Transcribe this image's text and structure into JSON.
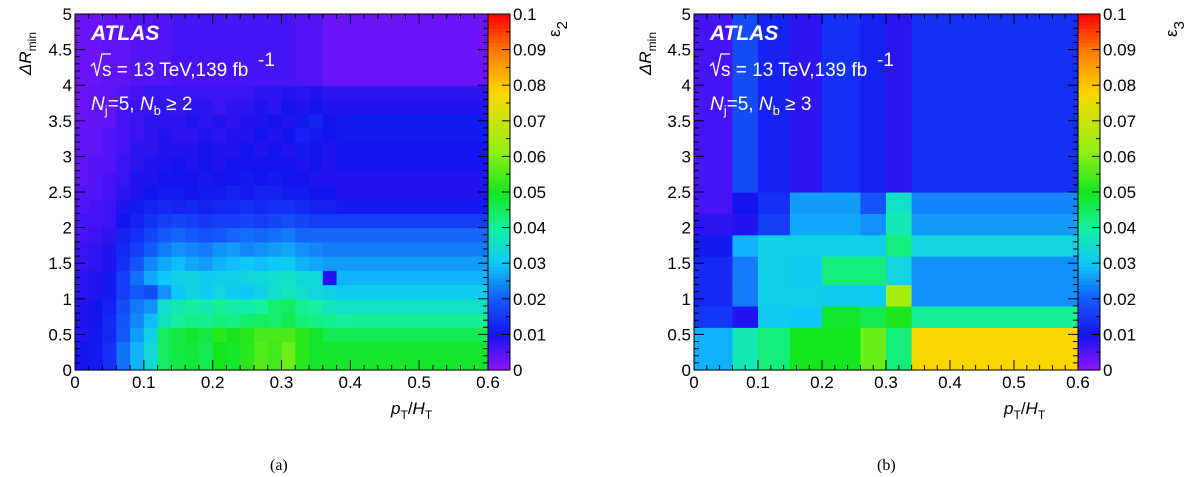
{
  "chart_data": [
    {
      "type": "heatmap",
      "panel_label": "(a)",
      "atlas_label": "ATLAS",
      "energy_text": "s = 13 TeV,139 fb",
      "energy_sup": "-1",
      "selection": {
        "nj": "N",
        "nj_sub": "j",
        "nj_val": "=5, ",
        "nb": "N",
        "nb_sub": "b",
        "nb_val": " ≥ 2"
      },
      "xlabel": {
        "p": "p",
        "p_sub": "T",
        "slash": "/",
        "h": "H",
        "h_sub": "T"
      },
      "ylabel": {
        "main": "ΔR",
        "sub": "min"
      },
      "zlabel": {
        "main": "ε",
        "sub": "2"
      },
      "xlim": [
        0,
        0.6
      ],
      "ylim": [
        0,
        5
      ],
      "zlim": [
        0,
        0.1
      ],
      "x_ticks": [
        "0",
        "0.1",
        "0.2",
        "0.3",
        "0.4",
        "0.5",
        "0.6"
      ],
      "y_ticks": [
        "0",
        "0.5",
        "1",
        "1.5",
        "2",
        "2.5",
        "3",
        "3.5",
        "4",
        "4.5",
        "5"
      ],
      "z_ticks": [
        "0",
        "0.01",
        "0.02",
        "0.03",
        "0.04",
        "0.05",
        "0.06",
        "0.07",
        "0.08",
        "0.09",
        "0.1"
      ],
      "x_edges": [
        0,
        0.02,
        0.04,
        0.06,
        0.08,
        0.1,
        0.12,
        0.14,
        0.16,
        0.18,
        0.2,
        0.22,
        0.24,
        0.26,
        0.28,
        0.3,
        0.32,
        0.34,
        0.36,
        0.38,
        0.4,
        0.6
      ],
      "y_edges": [
        0,
        0.2,
        0.4,
        0.6,
        0.8,
        1.0,
        1.2,
        1.4,
        1.6,
        1.8,
        2.0,
        2.2,
        2.4,
        2.6,
        2.8,
        3.0,
        3.2,
        3.4,
        3.6,
        3.8,
        4.0,
        5.0
      ],
      "z": [
        [
          0.01,
          0.011,
          0.014,
          0.022,
          0.028,
          0.034,
          0.045,
          0.047,
          0.048,
          0.046,
          0.05,
          0.049,
          0.052,
          0.056,
          0.054,
          0.058,
          0.052,
          0.049,
          0.049,
          0.049,
          0.049
        ],
        [
          0.01,
          0.011,
          0.014,
          0.022,
          0.028,
          0.034,
          0.045,
          0.047,
          0.048,
          0.046,
          0.05,
          0.049,
          0.052,
          0.056,
          0.054,
          0.058,
          0.052,
          0.049,
          0.049,
          0.049,
          0.049
        ],
        [
          0.009,
          0.011,
          0.013,
          0.02,
          0.026,
          0.032,
          0.045,
          0.047,
          0.049,
          0.047,
          0.052,
          0.05,
          0.052,
          0.055,
          0.055,
          0.055,
          0.052,
          0.049,
          0.046,
          0.046,
          0.046
        ],
        [
          0.009,
          0.01,
          0.013,
          0.019,
          0.024,
          0.029,
          0.036,
          0.04,
          0.042,
          0.041,
          0.043,
          0.042,
          0.044,
          0.045,
          0.044,
          0.046,
          0.043,
          0.042,
          0.041,
          0.04,
          0.041
        ],
        [
          0.009,
          0.01,
          0.012,
          0.018,
          0.023,
          0.025,
          0.035,
          0.038,
          0.04,
          0.038,
          0.041,
          0.039,
          0.039,
          0.04,
          0.044,
          0.045,
          0.041,
          0.04,
          0.037,
          0.036,
          0.036
        ],
        [
          0.008,
          0.009,
          0.011,
          0.016,
          0.02,
          0.018,
          0.025,
          0.03,
          0.033,
          0.031,
          0.033,
          0.031,
          0.03,
          0.032,
          0.035,
          0.037,
          0.035,
          0.033,
          0.032,
          0.031,
          0.031
        ],
        [
          0.008,
          0.009,
          0.011,
          0.016,
          0.022,
          0.027,
          0.03,
          0.032,
          0.033,
          0.031,
          0.032,
          0.032,
          0.033,
          0.034,
          0.035,
          0.036,
          0.034,
          0.034,
          0.009,
          0.028,
          0.028
        ],
        [
          0.007,
          0.008,
          0.009,
          0.014,
          0.019,
          0.024,
          0.027,
          0.029,
          0.027,
          0.026,
          0.028,
          0.029,
          0.03,
          0.029,
          0.03,
          0.031,
          0.028,
          0.027,
          0.026,
          0.026,
          0.026
        ],
        [
          0.007,
          0.008,
          0.009,
          0.013,
          0.016,
          0.02,
          0.023,
          0.025,
          0.024,
          0.023,
          0.025,
          0.026,
          0.024,
          0.025,
          0.026,
          0.027,
          0.025,
          0.024,
          0.023,
          0.023,
          0.023
        ],
        [
          0.006,
          0.007,
          0.008,
          0.012,
          0.014,
          0.017,
          0.02,
          0.021,
          0.02,
          0.019,
          0.02,
          0.021,
          0.022,
          0.021,
          0.022,
          0.023,
          0.021,
          0.021,
          0.021,
          0.021,
          0.021
        ],
        [
          0.006,
          0.006,
          0.007,
          0.01,
          0.012,
          0.014,
          0.016,
          0.017,
          0.016,
          0.015,
          0.016,
          0.016,
          0.017,
          0.016,
          0.017,
          0.018,
          0.017,
          0.016,
          0.016,
          0.016,
          0.016
        ],
        [
          0.005,
          0.006,
          0.007,
          0.009,
          0.011,
          0.012,
          0.013,
          0.012,
          0.013,
          0.012,
          0.013,
          0.013,
          0.014,
          0.013,
          0.014,
          0.014,
          0.013,
          0.012,
          0.012,
          0.011,
          0.011
        ],
        [
          0.005,
          0.005,
          0.006,
          0.008,
          0.009,
          0.01,
          0.011,
          0.011,
          0.01,
          0.011,
          0.011,
          0.012,
          0.011,
          0.012,
          0.012,
          0.011,
          0.011,
          0.01,
          0.01,
          0.009,
          0.009
        ],
        [
          0.004,
          0.005,
          0.006,
          0.007,
          0.009,
          0.009,
          0.01,
          0.01,
          0.01,
          0.009,
          0.01,
          0.01,
          0.011,
          0.01,
          0.011,
          0.01,
          0.01,
          0.009,
          0.009,
          0.009,
          0.009
        ],
        [
          0.004,
          0.005,
          0.005,
          0.007,
          0.008,
          0.009,
          0.009,
          0.01,
          0.009,
          0.01,
          0.009,
          0.01,
          0.01,
          0.01,
          0.01,
          0.01,
          0.009,
          0.01,
          0.009,
          0.01,
          0.01
        ],
        [
          0.004,
          0.004,
          0.005,
          0.006,
          0.008,
          0.008,
          0.009,
          0.009,
          0.009,
          0.01,
          0.009,
          0.009,
          0.01,
          0.009,
          0.01,
          0.009,
          0.011,
          0.01,
          0.009,
          0.01,
          0.01
        ],
        [
          0.004,
          0.004,
          0.005,
          0.006,
          0.007,
          0.008,
          0.009,
          0.008,
          0.008,
          0.009,
          0.008,
          0.009,
          0.009,
          0.01,
          0.009,
          0.01,
          0.012,
          0.011,
          0.01,
          0.011,
          0.011
        ],
        [
          0.003,
          0.004,
          0.004,
          0.006,
          0.007,
          0.008,
          0.008,
          0.008,
          0.009,
          0.008,
          0.009,
          0.008,
          0.009,
          0.009,
          0.01,
          0.009,
          0.011,
          0.012,
          0.01,
          0.011,
          0.011
        ],
        [
          0.003,
          0.004,
          0.004,
          0.006,
          0.007,
          0.007,
          0.008,
          0.007,
          0.008,
          0.008,
          0.007,
          0.008,
          0.008,
          0.009,
          0.008,
          0.01,
          0.009,
          0.01,
          0.009,
          0.009,
          0.009
        ],
        [
          0.003,
          0.004,
          0.004,
          0.005,
          0.006,
          0.007,
          0.007,
          0.007,
          0.007,
          0.007,
          0.007,
          0.007,
          0.007,
          0.008,
          0.008,
          0.009,
          0.008,
          0.009,
          0.008,
          0.008,
          0.008
        ],
        [
          0.003,
          0.003,
          0.004,
          0.004,
          0.005,
          0.005,
          0.005,
          0.006,
          0.006,
          0.006,
          0.006,
          0.006,
          0.006,
          0.006,
          0.006,
          0.006,
          0.005,
          0.005,
          0.003,
          0.003,
          0.003
        ]
      ]
    },
    {
      "type": "heatmap",
      "panel_label": "(b)",
      "atlas_label": "ATLAS",
      "energy_text": "s = 13 TeV,139 fb",
      "energy_sup": "-1",
      "selection": {
        "nj": "N",
        "nj_sub": "j",
        "nj_val": "=5, ",
        "nb": "N",
        "nb_sub": "b",
        "nb_val": " ≥ 3"
      },
      "xlabel": {
        "p": "p",
        "p_sub": "T",
        "slash": "/",
        "h": "H",
        "h_sub": "T"
      },
      "ylabel": {
        "main": "ΔR",
        "sub": "min"
      },
      "zlabel": {
        "main": "ε",
        "sub": "3"
      },
      "xlim": [
        0,
        0.6
      ],
      "ylim": [
        0,
        5
      ],
      "zlim": [
        0,
        0.1
      ],
      "x_ticks": [
        "0",
        "0.1",
        "0.2",
        "0.3",
        "0.4",
        "0.5",
        "0.6"
      ],
      "y_ticks": [
        "0",
        "0.5",
        "1",
        "1.5",
        "2",
        "2.5",
        "3",
        "3.5",
        "4",
        "4.5",
        "5"
      ],
      "z_ticks": [
        "0",
        "0.01",
        "0.02",
        "0.03",
        "0.04",
        "0.05",
        "0.06",
        "0.07",
        "0.08",
        "0.09",
        "0.1"
      ],
      "x_edges": [
        0,
        0.06,
        0.1,
        0.15,
        0.2,
        0.26,
        0.3,
        0.34,
        0.6
      ],
      "y_edges": [
        0,
        0.6,
        0.9,
        1.2,
        1.6,
        1.9,
        2.2,
        2.5,
        5.0
      ],
      "z": [
        [
          0.028,
          0.038,
          0.043,
          0.05,
          0.05,
          0.058,
          0.043,
          0.078
        ],
        [
          0.015,
          0.009,
          0.031,
          0.03,
          0.049,
          0.046,
          0.051,
          0.041
        ],
        [
          0.013,
          0.023,
          0.032,
          0.032,
          0.031,
          0.031,
          0.064,
          0.025
        ],
        [
          0.013,
          0.023,
          0.032,
          0.031,
          0.043,
          0.043,
          0.033,
          0.025
        ],
        [
          0.011,
          0.028,
          0.032,
          0.032,
          0.032,
          0.032,
          0.043,
          0.033
        ],
        [
          0.008,
          0.009,
          0.016,
          0.027,
          0.027,
          0.025,
          0.038,
          0.026
        ],
        [
          0.006,
          0.01,
          0.014,
          0.026,
          0.026,
          0.019,
          0.036,
          0.024
        ],
        [
          0.006,
          0.018,
          0.012,
          0.008,
          0.014,
          0.012,
          0.008,
          0.014
        ]
      ]
    }
  ]
}
